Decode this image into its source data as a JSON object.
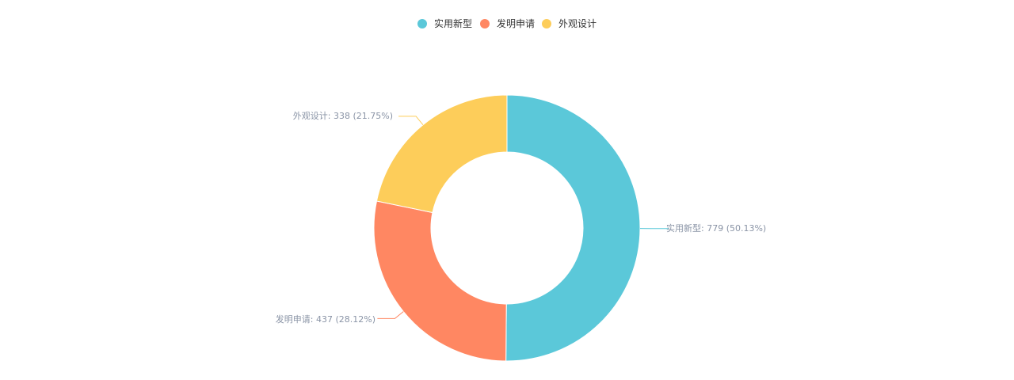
{
  "chart_data": {
    "type": "pie",
    "style": "donut",
    "legend_position": "top-center",
    "categories": [
      "实用新型",
      "发明申请",
      "外观设计"
    ],
    "values": [
      779,
      437,
      338
    ],
    "percentages": [
      "50.13%",
      "28.12%",
      "21.75%"
    ],
    "colors": [
      "#5bc8d9",
      "#ff8762",
      "#fdcd5a"
    ],
    "labels": [
      "实用新型: 779 (50.13%)",
      "发明申请: 437 (28.12%)",
      "外观设计: 338 (21.75%)"
    ]
  }
}
